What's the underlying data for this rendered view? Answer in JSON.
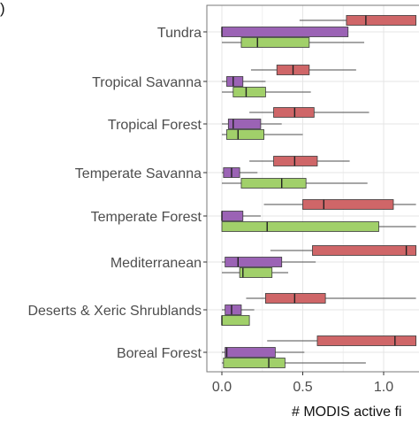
{
  "panel_letter": ")",
  "colors": {
    "red": "#cf6668",
    "purple": "#9b63b5",
    "green": "#a1d06a",
    "whisker": "#4d4d4d",
    "grid": "#e6e6e6",
    "axis_text": "#4d4d4d"
  },
  "chart_data": {
    "type": "boxplot",
    "orientation": "horizontal",
    "xlabel": "# MODIS active fi",
    "ylabel": "",
    "xlim": [
      -0.09,
      1.2
    ],
    "x_ticks": [
      0.0,
      0.5,
      1.0
    ],
    "x_tick_labels": [
      "0.0",
      "0.5",
      "1.0"
    ],
    "grid": true,
    "categories": [
      "Tundra",
      "Tropical Savanna",
      "Tropical Forest",
      "Temperate Savanna",
      "Temperate Forest",
      "Mediterranean",
      "Deserts & Xeric Shrublands",
      "Boreal Forest"
    ],
    "series": [
      {
        "color_key": "red",
        "boxes": [
          {
            "whislo": 0.48,
            "q1": 0.77,
            "med": 0.89,
            "q3": 1.2,
            "whishi": 1.2
          },
          {
            "whislo": 0.18,
            "q1": 0.34,
            "med": 0.44,
            "q3": 0.54,
            "whishi": 0.83
          },
          {
            "whislo": 0.17,
            "q1": 0.32,
            "med": 0.45,
            "q3": 0.57,
            "whishi": 0.91
          },
          {
            "whislo": 0.17,
            "q1": 0.32,
            "med": 0.45,
            "q3": 0.59,
            "whishi": 0.79
          },
          {
            "whislo": 0.26,
            "q1": 0.5,
            "med": 0.63,
            "q3": 1.06,
            "whishi": 1.2
          },
          {
            "whislo": 0.3,
            "q1": 0.56,
            "med": 1.14,
            "q3": 1.2,
            "whishi": 1.2
          },
          {
            "whislo": 0.15,
            "q1": 0.27,
            "med": 0.45,
            "q3": 0.64,
            "whishi": 1.2
          },
          {
            "whislo": 0.28,
            "q1": 0.59,
            "med": 1.07,
            "q3": 1.2,
            "whishi": 1.2
          }
        ]
      },
      {
        "color_key": "purple",
        "boxes": [
          {
            "whislo": 0.0,
            "q1": 0.0,
            "med": 0.0,
            "q3": 0.78,
            "whishi": 0.78
          },
          {
            "whislo": 0.0,
            "q1": 0.03,
            "med": 0.07,
            "q3": 0.13,
            "whishi": 0.27
          },
          {
            "whislo": 0.0,
            "q1": 0.04,
            "med": 0.07,
            "q3": 0.24,
            "whishi": 0.37
          },
          {
            "whislo": 0.0,
            "q1": 0.01,
            "med": 0.06,
            "q3": 0.11,
            "whishi": 0.22
          },
          {
            "whislo": 0.0,
            "q1": 0.0,
            "med": 0.0,
            "q3": 0.13,
            "whishi": 0.24
          },
          {
            "whislo": 0.0,
            "q1": 0.02,
            "med": 0.1,
            "q3": 0.37,
            "whishi": 0.58
          },
          {
            "whislo": 0.0,
            "q1": 0.02,
            "med": 0.06,
            "q3": 0.12,
            "whishi": 0.2
          },
          {
            "whislo": 0.0,
            "q1": 0.02,
            "med": 0.03,
            "q3": 0.33,
            "whishi": 0.51
          }
        ]
      },
      {
        "color_key": "green",
        "boxes": [
          {
            "whislo": 0.0,
            "q1": 0.12,
            "med": 0.22,
            "q3": 0.54,
            "whishi": 0.88
          },
          {
            "whislo": 0.0,
            "q1": 0.07,
            "med": 0.15,
            "q3": 0.27,
            "whishi": 0.55
          },
          {
            "whislo": 0.0,
            "q1": 0.03,
            "med": 0.1,
            "q3": 0.26,
            "whishi": 0.5
          },
          {
            "whislo": 0.0,
            "q1": 0.12,
            "med": 0.37,
            "q3": 0.52,
            "whishi": 0.9
          },
          {
            "whislo": 0.0,
            "q1": 0.0,
            "med": 0.28,
            "q3": 0.97,
            "whishi": 1.2
          },
          {
            "whislo": 0.0,
            "q1": 0.11,
            "med": 0.13,
            "q3": 0.31,
            "whishi": 0.41
          },
          {
            "whislo": 0.0,
            "q1": 0.0,
            "med": 0.0,
            "q3": 0.17,
            "whishi": 0.17
          },
          {
            "whislo": 0.0,
            "q1": 0.01,
            "med": 0.29,
            "q3": 0.39,
            "whishi": 0.89
          }
        ]
      }
    ]
  }
}
